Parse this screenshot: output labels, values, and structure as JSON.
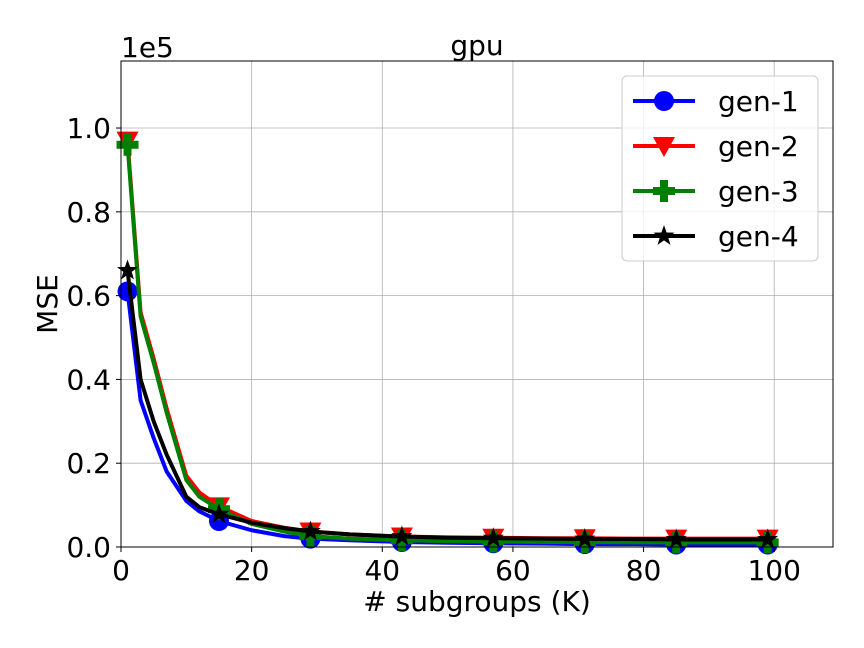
{
  "chart_data": {
    "type": "line",
    "title": "gpu",
    "xlabel": "# subgroups (K)",
    "ylabel": "MSE",
    "y_multiplier_label": "1e5",
    "xlim": [
      0,
      109
    ],
    "ylim": [
      0,
      1.16
    ],
    "x_ticks": [
      0,
      20,
      40,
      60,
      80,
      100
    ],
    "x_tick_labels": [
      "0",
      "20",
      "40",
      "60",
      "80",
      "100"
    ],
    "y_ticks": [
      0,
      0.2,
      0.4,
      0.6,
      0.8,
      1.0
    ],
    "y_tick_labels": [
      "0.0",
      "0.2",
      "0.4",
      "0.6",
      "0.8",
      "1.0"
    ],
    "grid": true,
    "legend_position": "top-right",
    "x": [
      1,
      3,
      5,
      7,
      10,
      12,
      15,
      20,
      25,
      29,
      35,
      43,
      50,
      57,
      65,
      71,
      78,
      85,
      92,
      99
    ],
    "marker_x": [
      1,
      15,
      29,
      43,
      57,
      71,
      85,
      99
    ],
    "series": [
      {
        "name": "gen-1",
        "color": "#0000ff",
        "marker": "circle",
        "values": [
          0.61,
          0.35,
          0.26,
          0.18,
          0.11,
          0.085,
          0.062,
          0.04,
          0.026,
          0.02,
          0.016,
          0.012,
          0.01,
          0.009,
          0.008,
          0.007,
          0.007,
          0.006,
          0.006,
          0.006
        ]
      },
      {
        "name": "gen-2",
        "color": "#ff0000",
        "marker": "triangle-down",
        "values": [
          0.97,
          0.56,
          0.45,
          0.33,
          0.17,
          0.13,
          0.097,
          0.062,
          0.046,
          0.037,
          0.03,
          0.025,
          0.023,
          0.022,
          0.021,
          0.021,
          0.02,
          0.02,
          0.02,
          0.02
        ]
      },
      {
        "name": "gen-3",
        "color": "#008000",
        "marker": "plus",
        "values": [
          0.96,
          0.55,
          0.44,
          0.32,
          0.16,
          0.12,
          0.09,
          0.055,
          0.037,
          0.026,
          0.02,
          0.016,
          0.014,
          0.013,
          0.012,
          0.012,
          0.011,
          0.011,
          0.011,
          0.011
        ]
      },
      {
        "name": "gen-4",
        "color": "#000000",
        "marker": "star",
        "values": [
          0.66,
          0.4,
          0.3,
          0.22,
          0.12,
          0.095,
          0.078,
          0.058,
          0.045,
          0.037,
          0.03,
          0.025,
          0.022,
          0.021,
          0.02,
          0.019,
          0.019,
          0.018,
          0.018,
          0.018
        ]
      }
    ]
  }
}
